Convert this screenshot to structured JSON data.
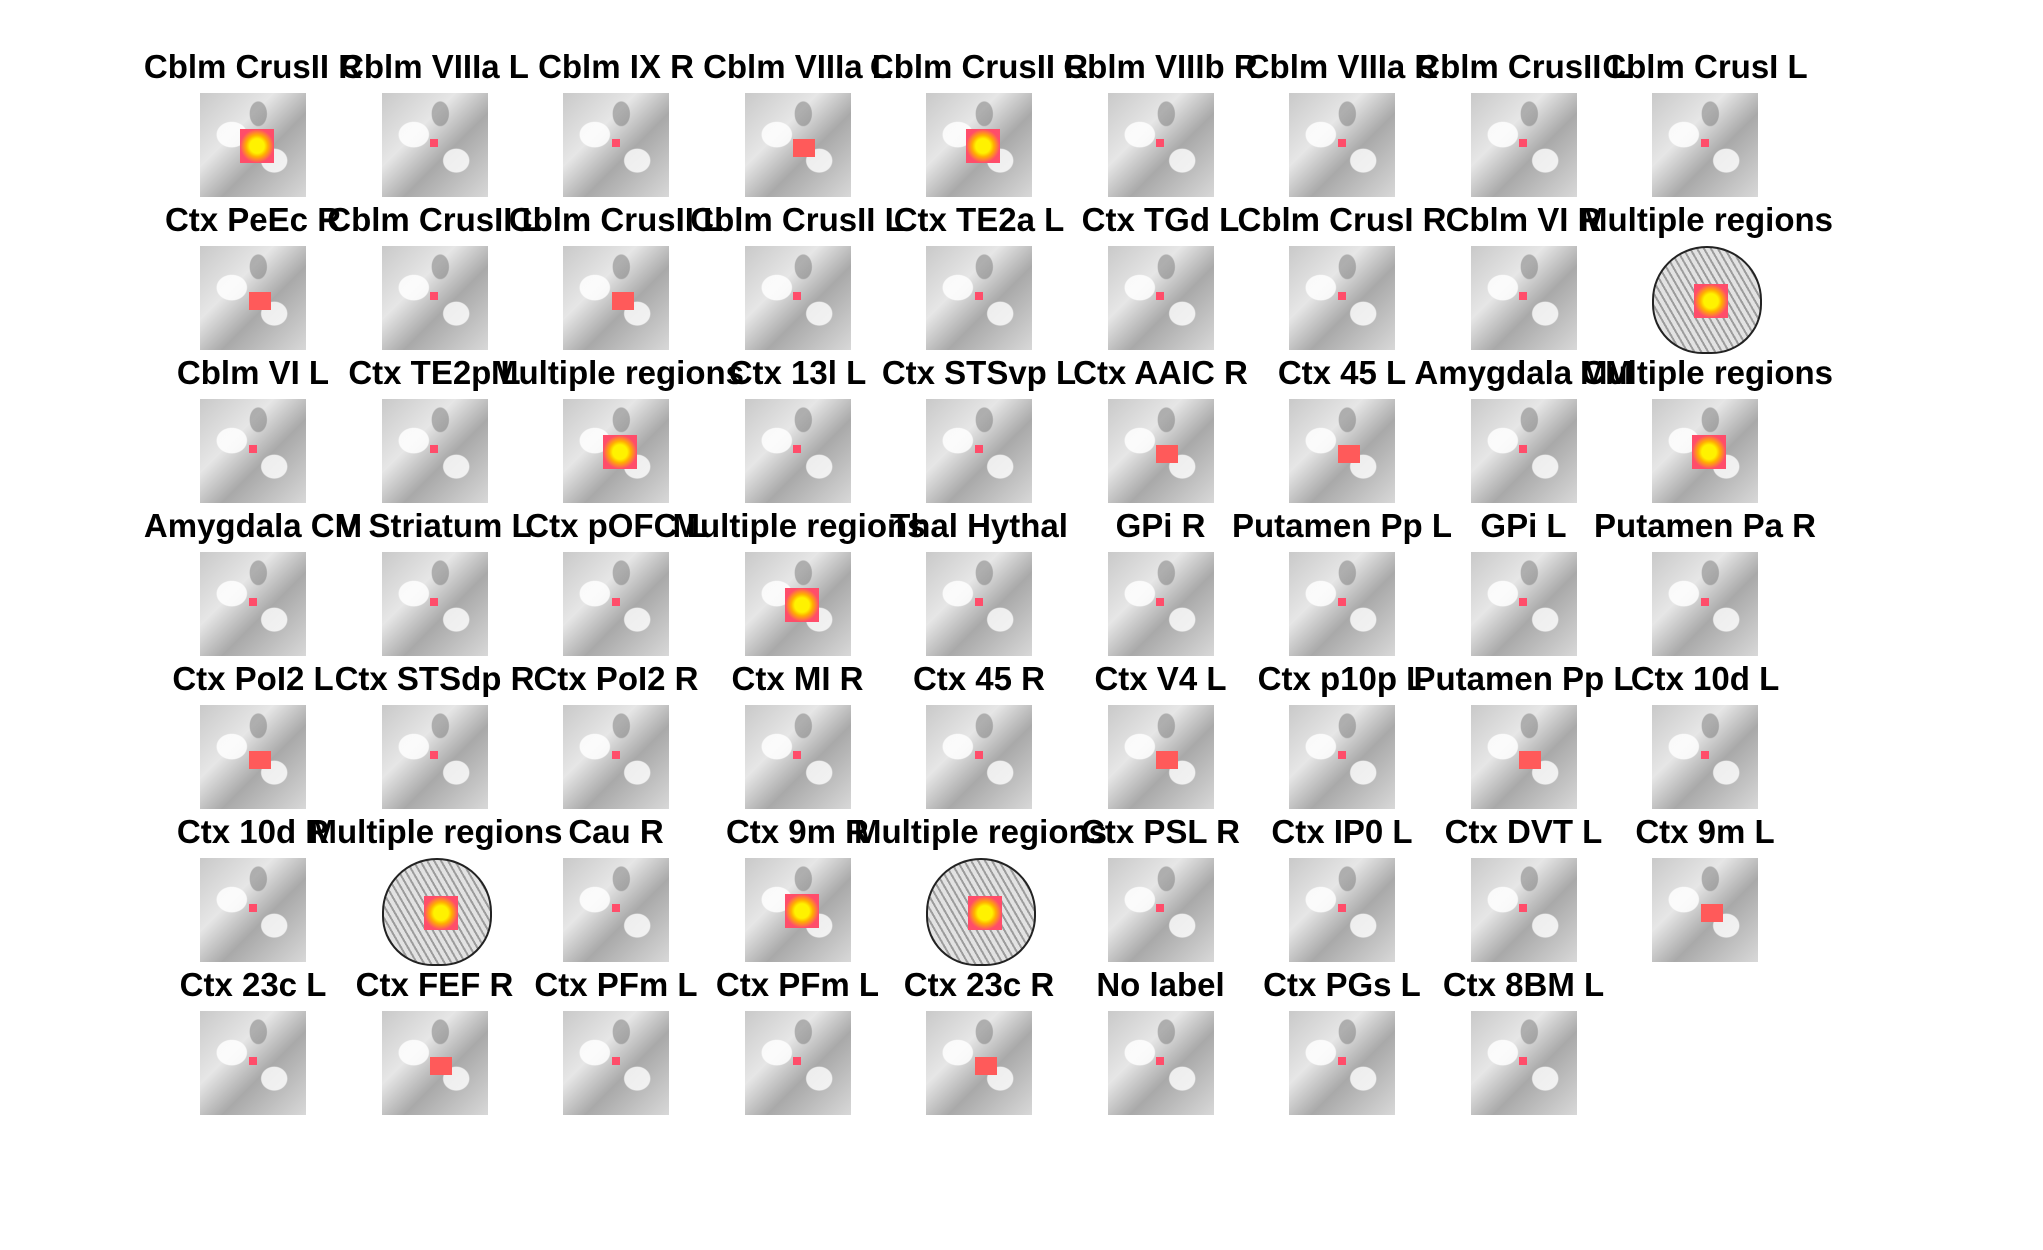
{
  "panels": [
    {
      "label": "Cblm CrusII R",
      "size": "large"
    },
    {
      "label": "Cblm VIIIa L",
      "size": "small"
    },
    {
      "label": "Cblm IX R",
      "size": "small"
    },
    {
      "label": "Cblm VIIIa L",
      "size": "medium"
    },
    {
      "label": "Cblm CrusII R",
      "size": "large"
    },
    {
      "label": "Cblm VIIIb R",
      "size": "small"
    },
    {
      "label": "Cblm VIIIa R",
      "size": "small"
    },
    {
      "label": "Cblm CrusII L",
      "size": "small"
    },
    {
      "label": "Cblm CrusI L",
      "size": "small"
    },
    {
      "label": "Ctx PeEc R",
      "size": "medium"
    },
    {
      "label": "Cblm CrusII L",
      "size": "small"
    },
    {
      "label": "Cblm CrusII L",
      "size": "medium"
    },
    {
      "label": "Cblm CrusII L",
      "size": "small"
    },
    {
      "label": "Ctx TE2a L",
      "size": "small"
    },
    {
      "label": "Ctx TGd L",
      "size": "small"
    },
    {
      "label": "Cblm CrusI R",
      "size": "small"
    },
    {
      "label": "Cblm VI R",
      "size": "small"
    },
    {
      "label": "Multiple regions",
      "size": "brain"
    },
    {
      "label": "Cblm VI L",
      "size": "small"
    },
    {
      "label": "Ctx TE2p L",
      "size": "small"
    },
    {
      "label": "Multiple regions",
      "size": "large"
    },
    {
      "label": "Ctx 13l L",
      "size": "small"
    },
    {
      "label": "Ctx STSvp L",
      "size": "small"
    },
    {
      "label": "Ctx AAIC R",
      "size": "medium"
    },
    {
      "label": "Ctx 45 L",
      "size": "medium"
    },
    {
      "label": "Amygdala CM",
      "size": "small"
    },
    {
      "label": "Multiple regions",
      "size": "large"
    },
    {
      "label": "Amygdala CM",
      "size": "small"
    },
    {
      "label": "V Striatum L",
      "size": "small"
    },
    {
      "label": "Ctx pOFC L",
      "size": "small"
    },
    {
      "label": "Multiple regions",
      "size": "large"
    },
    {
      "label": "Thal Hythal",
      "size": "small"
    },
    {
      "label": "GPi R",
      "size": "small"
    },
    {
      "label": "Putamen Pp L",
      "size": "small"
    },
    {
      "label": "GPi L",
      "size": "small"
    },
    {
      "label": "Putamen Pa R",
      "size": "small"
    },
    {
      "label": "Ctx PoI2 L",
      "size": "medium"
    },
    {
      "label": "Ctx STSdp R",
      "size": "small"
    },
    {
      "label": "Ctx PoI2 R",
      "size": "small"
    },
    {
      "label": "Ctx MI R",
      "size": "small"
    },
    {
      "label": "Ctx 45 R",
      "size": "small"
    },
    {
      "label": "Ctx V4 L",
      "size": "medium"
    },
    {
      "label": "Ctx p10p L",
      "size": "small"
    },
    {
      "label": "Putamen Pp L",
      "size": "medium"
    },
    {
      "label": "Ctx 10d L",
      "size": "small"
    },
    {
      "label": "Ctx 10d R",
      "size": "small"
    },
    {
      "label": "Multiple regions",
      "size": "brain"
    },
    {
      "label": "Cau R",
      "size": "small"
    },
    {
      "label": "Ctx 9m R",
      "size": "large"
    },
    {
      "label": "Multiple regions",
      "size": "brain"
    },
    {
      "label": "Ctx PSL R",
      "size": "small"
    },
    {
      "label": "Ctx IP0 L",
      "size": "small"
    },
    {
      "label": "Ctx DVT L",
      "size": "small"
    },
    {
      "label": "Ctx 9m L",
      "size": "medium"
    },
    {
      "label": "Ctx 23c L",
      "size": "small"
    },
    {
      "label": "Ctx FEF R",
      "size": "medium"
    },
    {
      "label": "Ctx PFm L",
      "size": "small"
    },
    {
      "label": "Ctx PFm L",
      "size": "small"
    },
    {
      "label": "Ctx 23c R",
      "size": "medium"
    },
    {
      "label": "No label",
      "size": "small"
    },
    {
      "label": "Ctx PGs L",
      "size": "small"
    },
    {
      "label": "Ctx 8BM L",
      "size": "small"
    }
  ]
}
